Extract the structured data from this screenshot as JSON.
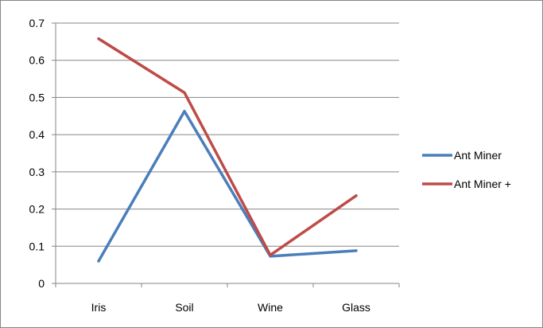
{
  "chart_data": {
    "type": "line",
    "title": "",
    "xlabel": "",
    "ylabel": "",
    "categories": [
      "Iris",
      "Soil",
      "Wine",
      "Glass"
    ],
    "ylim": [
      0,
      0.7
    ],
    "yticks": [
      0,
      0.1,
      0.2,
      0.3,
      0.4,
      0.5,
      0.6,
      0.7
    ],
    "ytick_labels": [
      "0",
      "0.1",
      "0.2",
      "0.3",
      "0.4",
      "0.5",
      "0.6",
      "0.7"
    ],
    "grid": true,
    "legend_position": "right",
    "series": [
      {
        "name": "Ant Miner",
        "color": "#4A7EBB",
        "values": [
          0.06,
          0.463,
          0.073,
          0.088
        ]
      },
      {
        "name": "Ant Miner +",
        "color": "#BE4B48",
        "values": [
          0.658,
          0.513,
          0.076,
          0.236
        ]
      }
    ]
  }
}
